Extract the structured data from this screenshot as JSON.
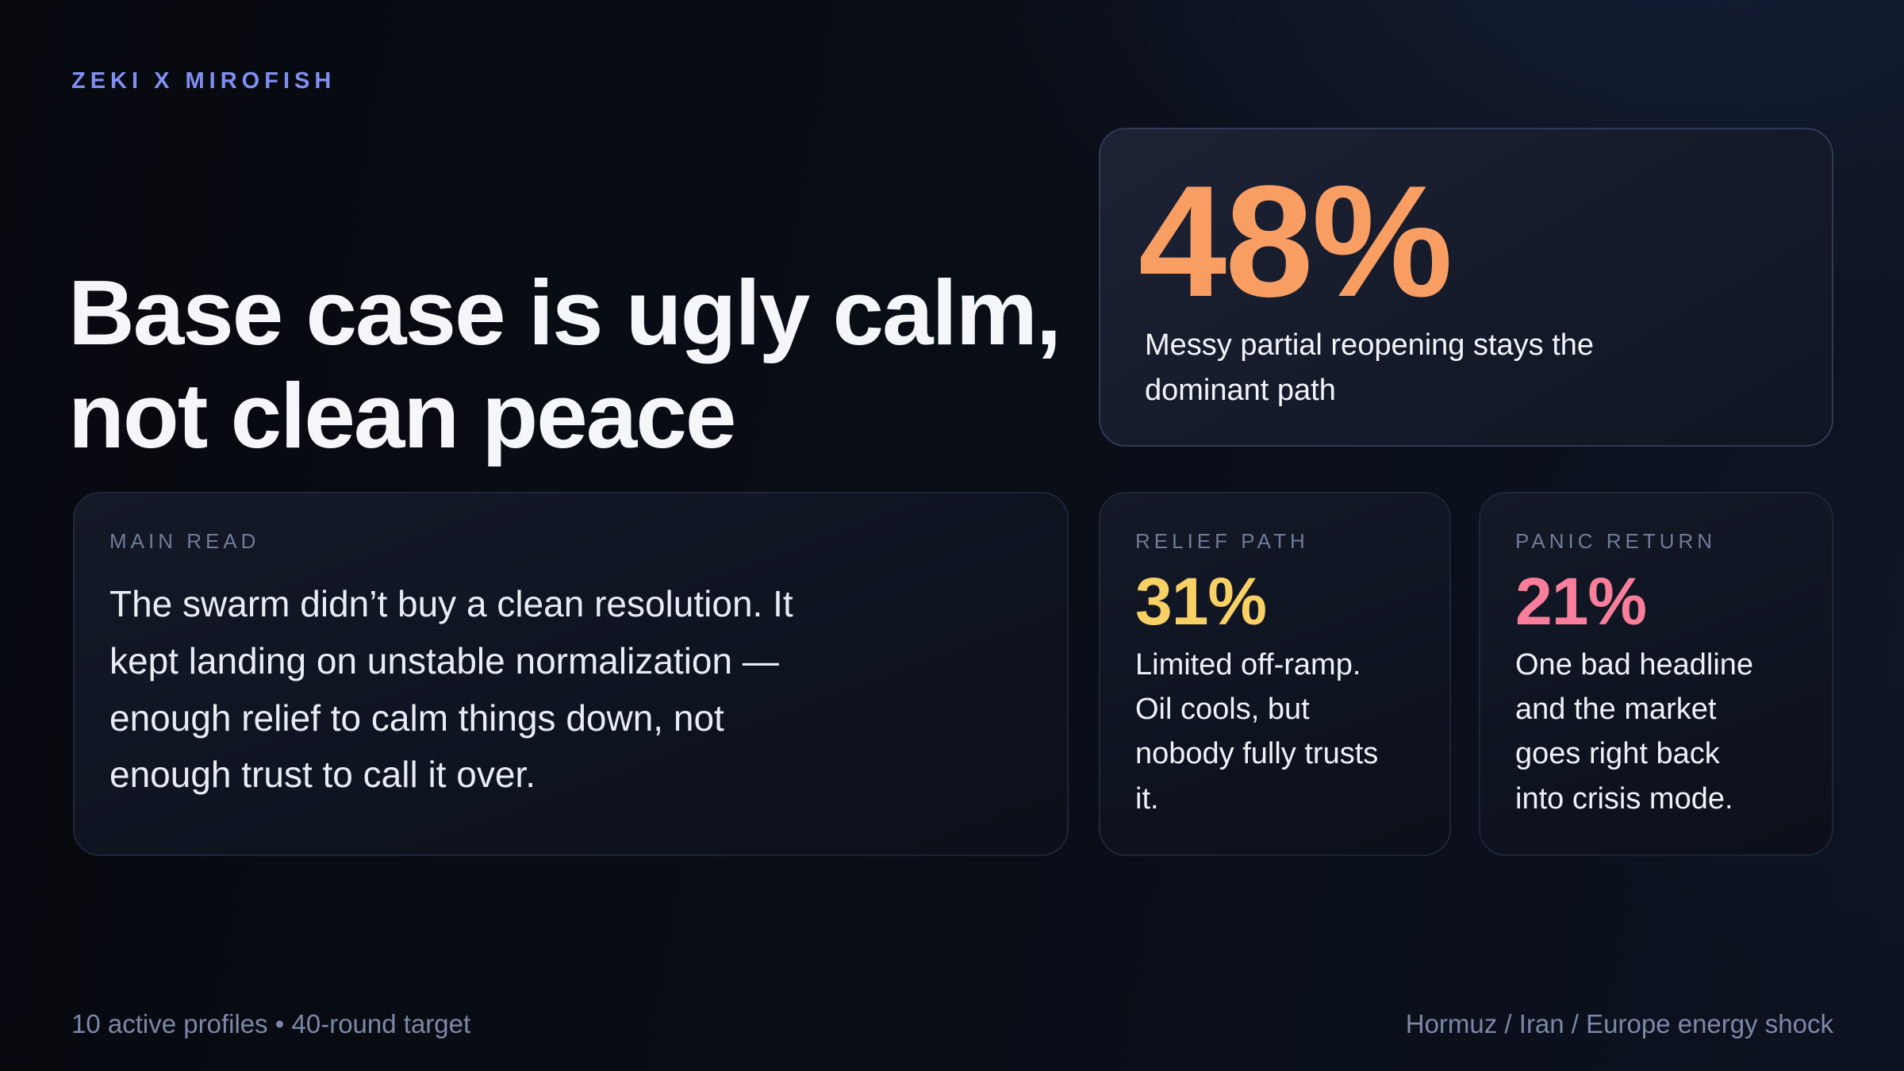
{
  "brand": "ZEKI X MIROFISH",
  "headline": "Base case is ugly calm,\nnot clean peace",
  "primary_stat": {
    "value": "48%",
    "caption": "Messy partial reopening stays the\ndominant path"
  },
  "cards": {
    "main_read": {
      "label": "MAIN READ",
      "body": "The swarm didn’t buy a clean resolution. It\nkept landing on unstable normalization —\nenough relief to calm things down, not\nenough trust to call it over."
    },
    "relief": {
      "label": "RELIEF PATH",
      "value": "31%",
      "body": "Limited off-ramp.\nOil cools, but\nnobody fully trusts\nit."
    },
    "panic": {
      "label": "PANIC RETURN",
      "value": "21%",
      "body": "One bad headline\nand the market\ngoes right back\ninto crisis mode."
    }
  },
  "footer": {
    "left": "10 active profiles • 40-round target",
    "right": "Hormuz / Iran / Europe energy shock"
  },
  "colors": {
    "accent_orange": "#f99e63",
    "accent_yellow": "#f8d063",
    "accent_pink": "#f87e9b",
    "brand_blue": "#7f8ff2",
    "label_muted": "#6f7b99",
    "footer_muted": "#7c88a7"
  }
}
